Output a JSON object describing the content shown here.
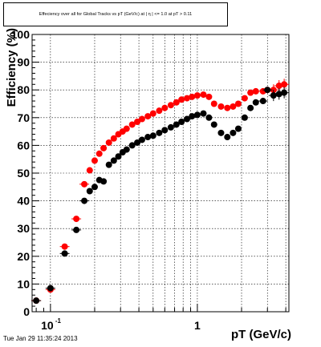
{
  "header": {
    "title": "Effeciency over all for Global Tracks vs pT (GeV/c) at | η | <= 1.0 at pT > 0.11",
    "timestamp": "Tue Jan 29 11:35:24 2013"
  },
  "chart_data": {
    "type": "scatter",
    "title": "Effeciency over all for Global Tracks vs pT (GeV/c) at | η | <= 1.0 at pT > 0.11",
    "xlabel": "pT (GeV/c)",
    "ylabel": "Efficiency (%)",
    "xscale": "log",
    "xlim": [
      0.075,
      4.2
    ],
    "ylim": [
      0,
      100
    ],
    "grid": true,
    "x_tick_labels": [
      {
        "value": 0.1,
        "base": "10",
        "exp": "-1"
      },
      {
        "value": 1,
        "base": "1",
        "exp": ""
      }
    ],
    "y_ticks": [
      0,
      10,
      20,
      30,
      40,
      50,
      60,
      70,
      80,
      90,
      100
    ],
    "series": [
      {
        "color": "#ff0000",
        "x": [
          0.08,
          0.1,
          0.125,
          0.15,
          0.17,
          0.185,
          0.2,
          0.215,
          0.23,
          0.25,
          0.27,
          0.29,
          0.31,
          0.33,
          0.36,
          0.39,
          0.42,
          0.46,
          0.5,
          0.55,
          0.6,
          0.66,
          0.72,
          0.78,
          0.85,
          0.92,
          1.0,
          1.1,
          1.2,
          1.3,
          1.45,
          1.6,
          1.75,
          1.9,
          2.1,
          2.3,
          2.5,
          2.8,
          3.0,
          3.3,
          3.6,
          3.9
        ],
        "y": [
          4,
          8,
          23.5,
          33.5,
          46,
          51,
          54.5,
          57,
          59,
          61,
          62.5,
          64,
          65,
          66,
          67.5,
          68.5,
          69.5,
          70.5,
          71.5,
          72.5,
          73.5,
          74.5,
          75.5,
          76.5,
          77,
          77.5,
          78,
          78.3,
          77.5,
          75,
          74,
          73.5,
          74,
          75,
          77,
          79,
          79.5,
          79.5,
          80,
          80,
          81.5,
          82
        ]
      },
      {
        "color": "#000000",
        "x": [
          0.08,
          0.1,
          0.125,
          0.15,
          0.17,
          0.185,
          0.2,
          0.215,
          0.23,
          0.25,
          0.27,
          0.29,
          0.31,
          0.33,
          0.36,
          0.39,
          0.42,
          0.46,
          0.5,
          0.55,
          0.6,
          0.66,
          0.72,
          0.78,
          0.85,
          0.92,
          1.0,
          1.1,
          1.2,
          1.3,
          1.45,
          1.6,
          1.75,
          1.9,
          2.1,
          2.3,
          2.5,
          2.8,
          3.0,
          3.3,
          3.6,
          3.9
        ],
        "y": [
          4,
          8.5,
          21,
          29.5,
          40,
          43.5,
          45,
          47.5,
          47,
          53,
          54.5,
          56,
          57.5,
          58.5,
          60,
          61,
          62,
          63,
          63.5,
          64.5,
          65.5,
          66.5,
          67.5,
          68.5,
          69.5,
          70.5,
          71,
          71.5,
          70,
          67.5,
          64.5,
          63,
          64.5,
          66,
          70,
          73.5,
          75.5,
          76,
          80,
          78,
          78.5,
          79
        ]
      }
    ]
  }
}
